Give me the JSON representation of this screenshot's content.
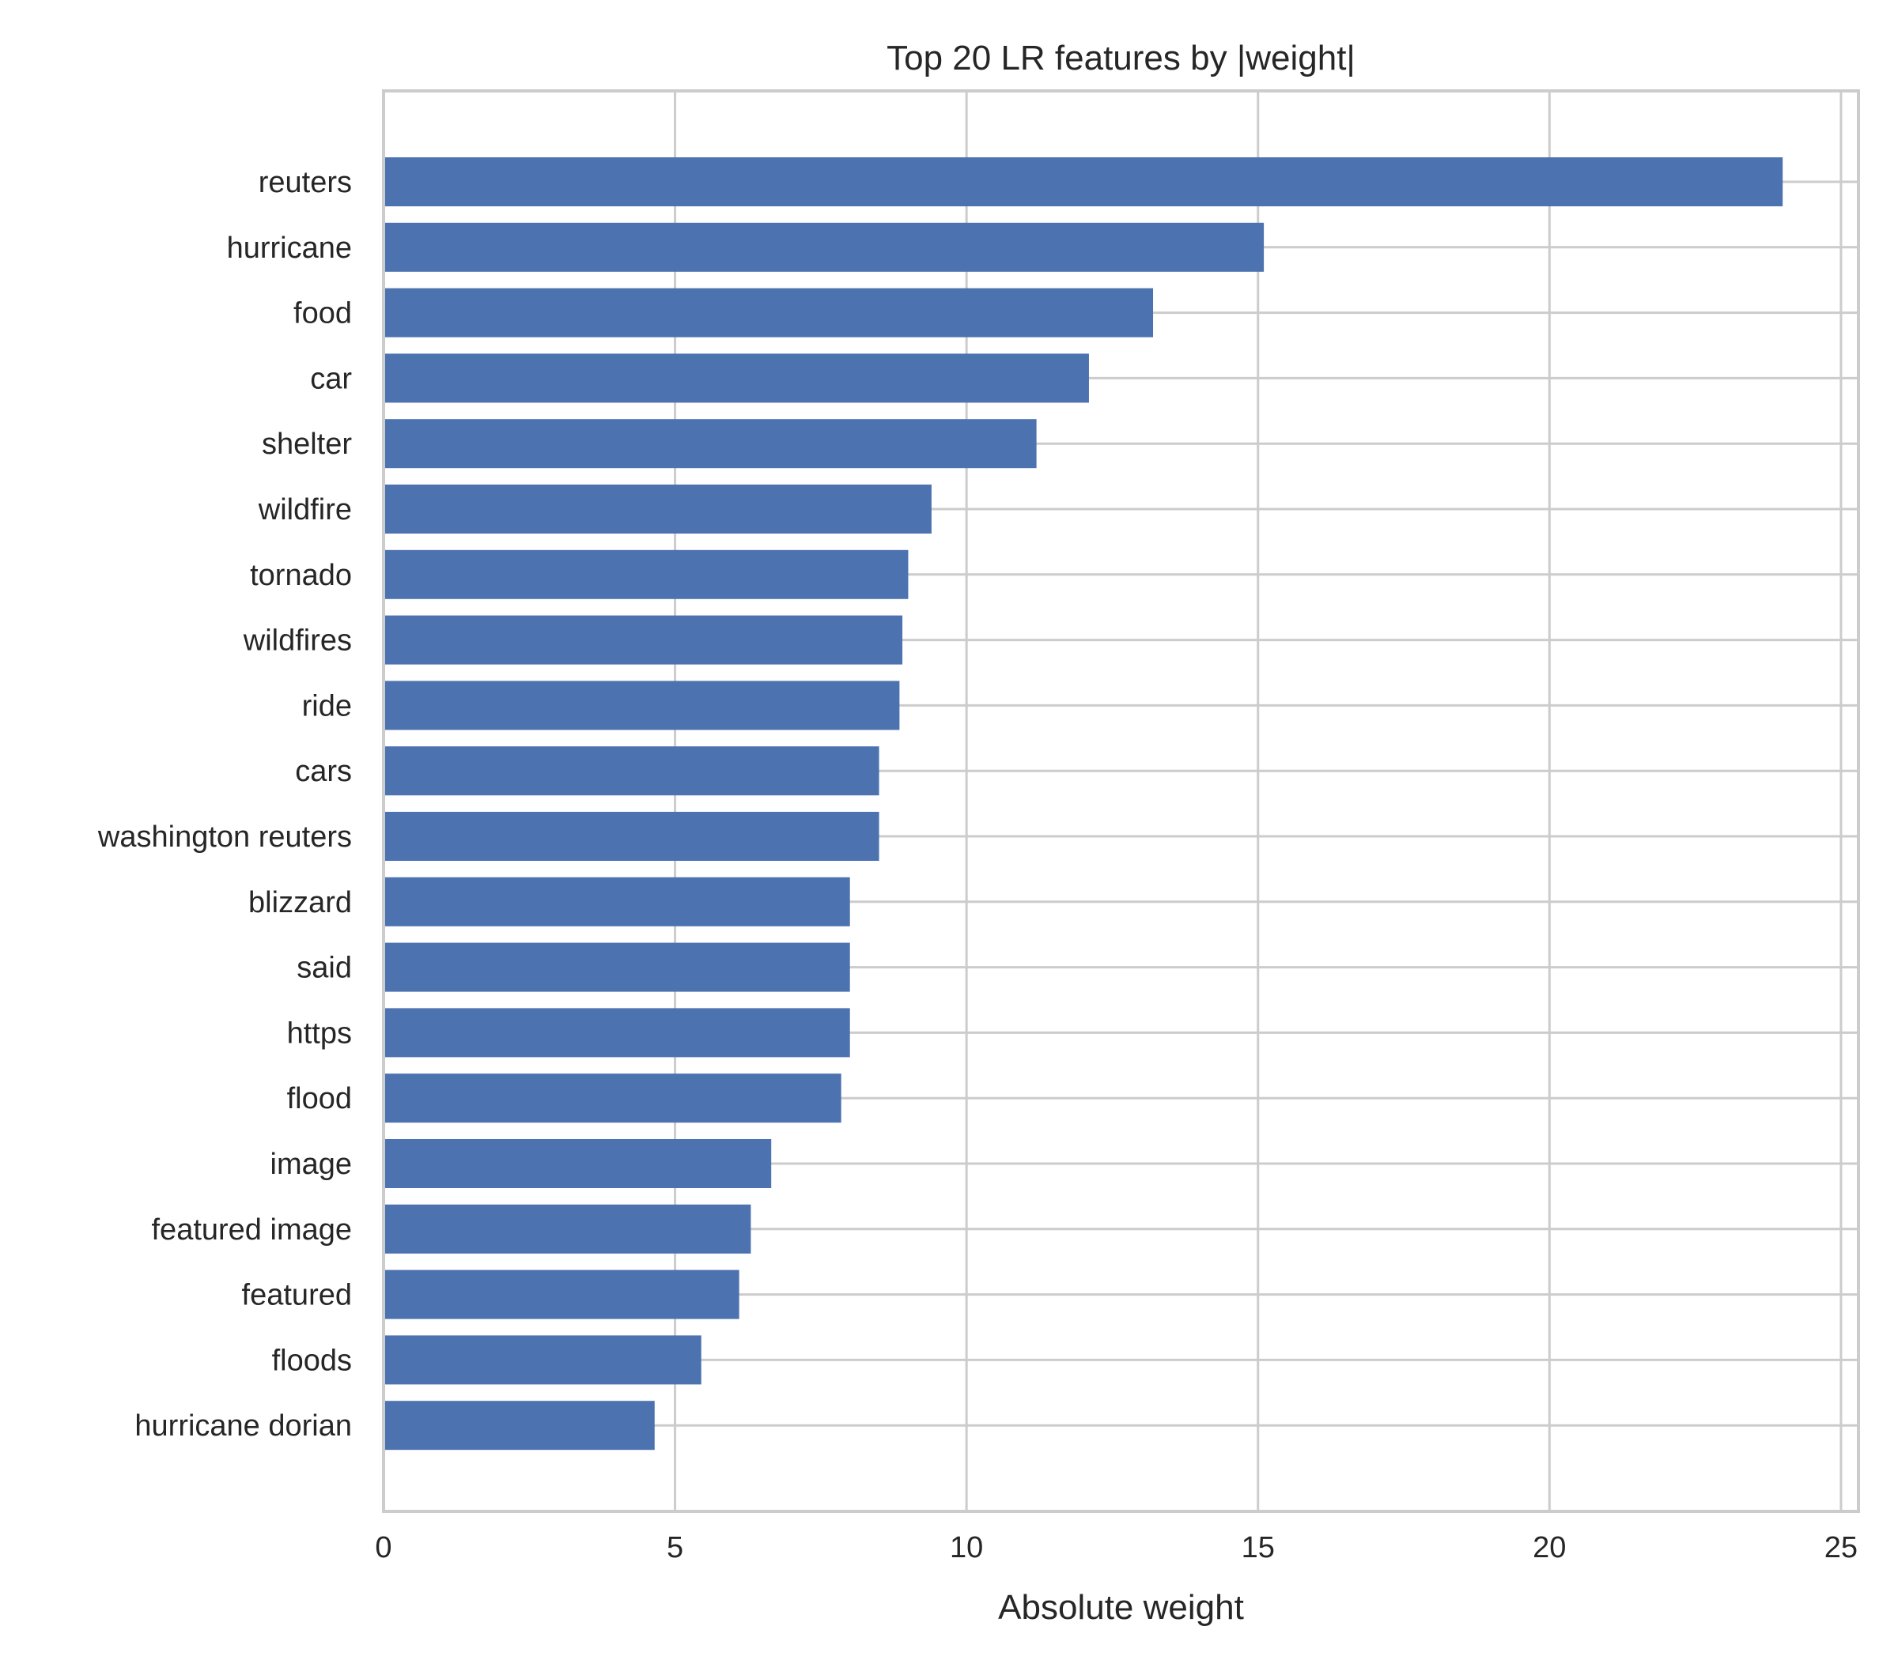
{
  "chart_data": {
    "type": "bar",
    "orientation": "horizontal",
    "title": "Top 20 LR features by |weight|",
    "xlabel": "Absolute weight",
    "ylabel": "",
    "xlim": [
      0,
      25.3
    ],
    "xticks": [
      0,
      5,
      10,
      15,
      20,
      25
    ],
    "grid": true,
    "bar_color": "#4c72b0",
    "grid_color": "#cccccc",
    "categories": [
      "reuters",
      "hurricane",
      "food",
      "car",
      "shelter",
      "wildfire",
      "tornado",
      "wildfires",
      "ride",
      "cars",
      "washington reuters",
      "blizzard",
      "said",
      "https",
      "flood",
      "image",
      "featured image",
      "featured",
      "floods",
      "hurricane dorian"
    ],
    "values": [
      24.0,
      15.1,
      13.2,
      12.1,
      11.2,
      9.4,
      9.0,
      8.9,
      8.85,
      8.5,
      8.5,
      8.0,
      8.0,
      8.0,
      7.85,
      6.65,
      6.3,
      6.1,
      5.45,
      4.65
    ]
  }
}
